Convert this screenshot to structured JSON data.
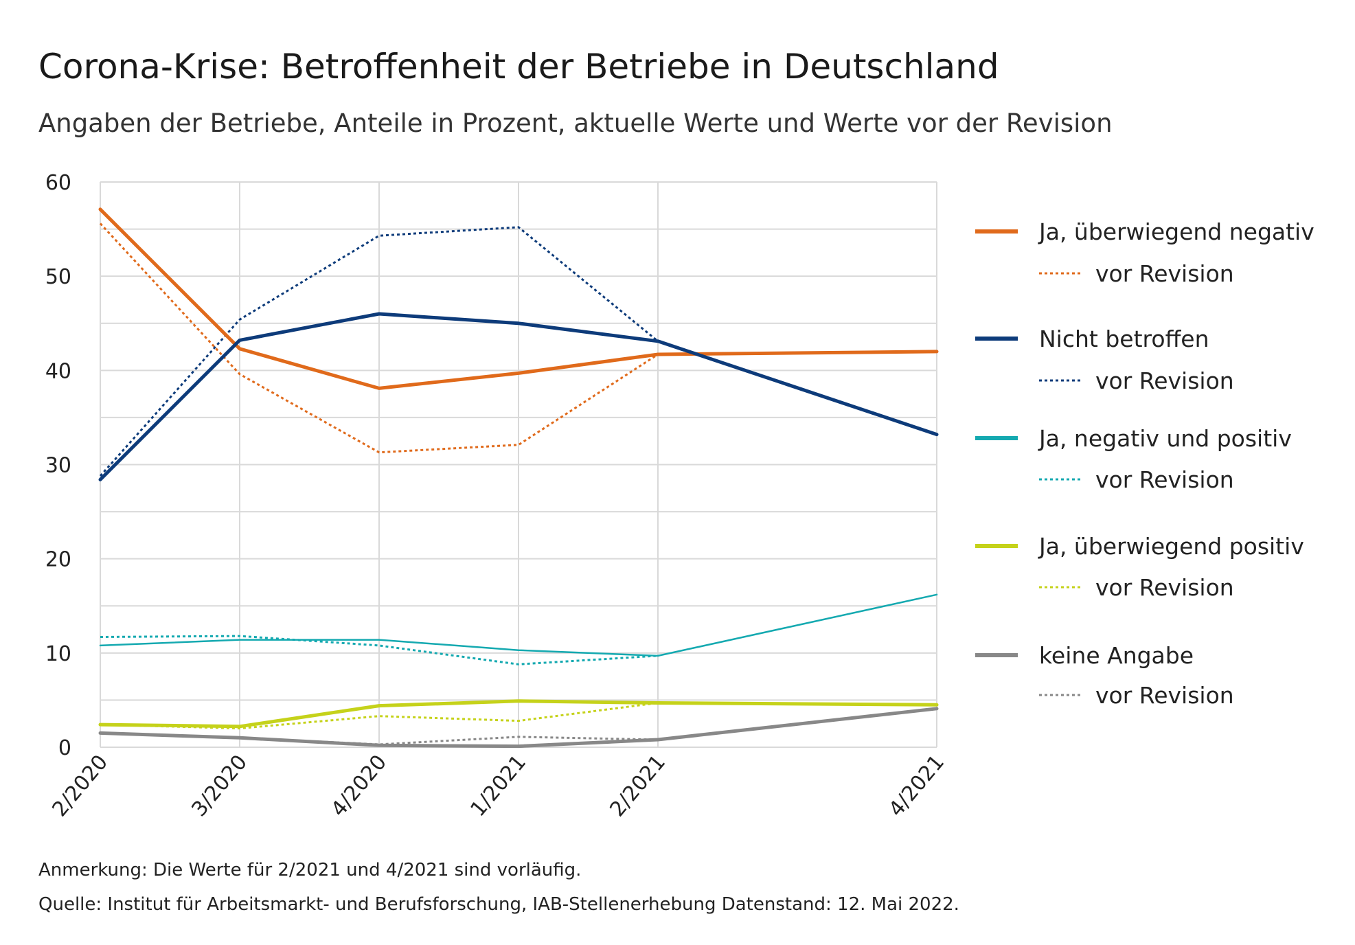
{
  "chart_data": {
    "type": "line",
    "title": "Corona-Krise: Betroffenheit der Betriebe in Deutschland",
    "subtitle": "Angaben der Betriebe, Anteile in Prozent, aktuelle Werte und Werte vor der Revision",
    "x": [
      "2/2020",
      "3/2020",
      "4/2020",
      "1/2021",
      "2/2021",
      "4/2021"
    ],
    "x_positions": [
      0,
      1,
      2,
      3,
      4,
      6
    ],
    "ylim": [
      0,
      60
    ],
    "yticks": [
      "0",
      "10",
      "20",
      "30",
      "40",
      "50",
      "60"
    ],
    "grid": true,
    "legend_position": "right",
    "series": [
      {
        "name": "Ja, überwiegend negativ",
        "style": "solid",
        "color": "#e06a1b",
        "values": [
          57.1,
          42.3,
          38.1,
          39.7,
          41.7,
          42.0
        ]
      },
      {
        "name": "vor Revision",
        "style": "dotted",
        "color": "#e06a1b",
        "values": [
          55.6,
          39.6,
          31.3,
          32.1,
          41.7,
          null
        ]
      },
      {
        "name": "Nicht betroffen",
        "style": "solid",
        "color": "#0d3b7a",
        "values": [
          28.4,
          43.2,
          46.0,
          45.0,
          43.1,
          33.2
        ]
      },
      {
        "name": "vor Revision",
        "style": "dotted",
        "color": "#0d3b7a",
        "values": [
          28.8,
          45.4,
          54.3,
          55.2,
          43.1,
          null
        ]
      },
      {
        "name": "Ja, negativ und positiv",
        "style": "solid",
        "color": "#14a9b0",
        "values": [
          10.8,
          11.4,
          11.4,
          10.3,
          9.7,
          16.2
        ]
      },
      {
        "name": "vor Revision",
        "style": "dotted",
        "color": "#14a9b0",
        "values": [
          11.7,
          11.8,
          10.8,
          8.8,
          9.7,
          null
        ]
      },
      {
        "name": "Ja, überwiegend positiv",
        "style": "solid",
        "color": "#c5d21a",
        "values": [
          2.4,
          2.2,
          4.4,
          4.9,
          4.7,
          4.5
        ]
      },
      {
        "name": "vor Revision",
        "style": "dotted",
        "color": "#c5d21a",
        "values": [
          2.4,
          2.0,
          3.3,
          2.8,
          4.7,
          null
        ]
      },
      {
        "name": "keine Angabe",
        "style": "solid",
        "color": "#888888",
        "values": [
          1.5,
          1.0,
          0.2,
          0.1,
          0.8,
          4.1
        ]
      },
      {
        "name": "vor Revision",
        "style": "dotted",
        "color": "#888888",
        "values": [
          1.5,
          1.0,
          0.3,
          1.1,
          0.8,
          null
        ]
      }
    ],
    "notes": [
      "Anmerkung: Die Werte für 2/2021 und 4/2021 sind vorläufig.",
      "Quelle: Institut für Arbeitsmarkt- und Berufsforschung, IAB-Stellenerhebung Datenstand: 12. Mai 2022."
    ]
  }
}
